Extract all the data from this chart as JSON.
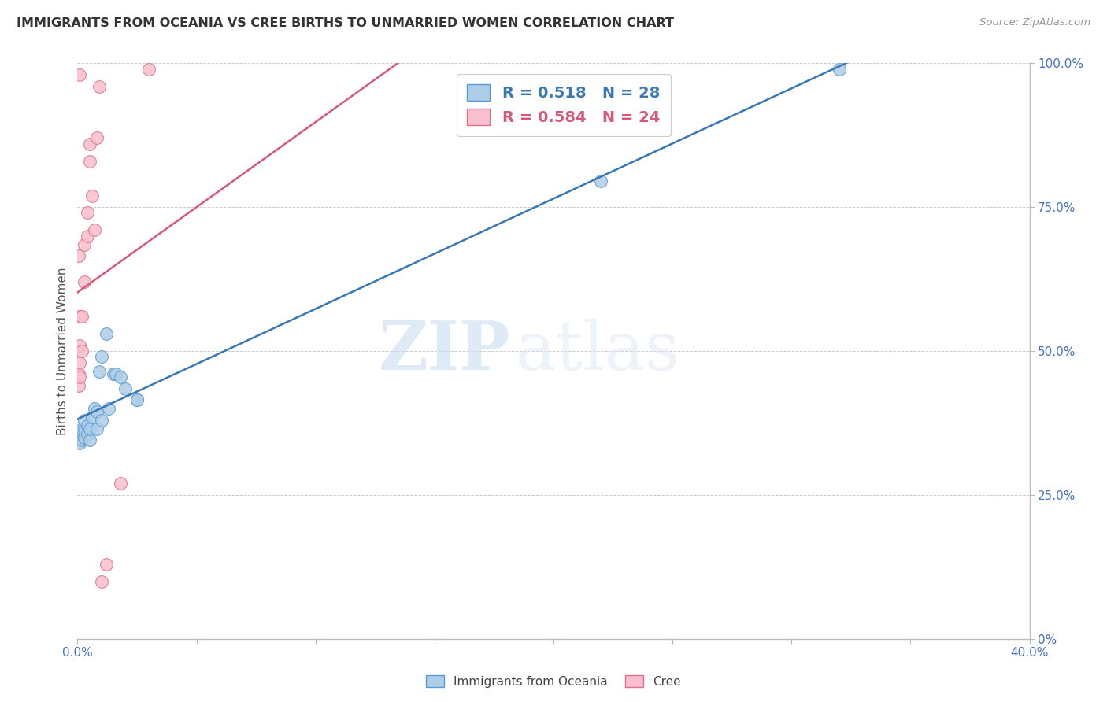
{
  "title": "IMMIGRANTS FROM OCEANIA VS CREE BIRTHS TO UNMARRIED WOMEN CORRELATION CHART",
  "source": "Source: ZipAtlas.com",
  "ylabel": "Births to Unmarried Women",
  "xlim": [
    0.0,
    0.4
  ],
  "ylim": [
    0.0,
    1.0
  ],
  "xticks": [
    0.0,
    0.05,
    0.1,
    0.15,
    0.2,
    0.25,
    0.3,
    0.35,
    0.4
  ],
  "xtick_labels": [
    "0.0%",
    "",
    "",
    "",
    "",
    "",
    "",
    "",
    "40.0%"
  ],
  "yticks_right": [
    0.0,
    0.25,
    0.5,
    0.75,
    1.0
  ],
  "ytick_labels_right": [
    "0%",
    "25.0%",
    "50.0%",
    "75.0%",
    "100.0%"
  ],
  "blue_fill_color": "#aecde8",
  "pink_fill_color": "#f9bfcc",
  "blue_edge_color": "#5b9bd5",
  "pink_edge_color": "#e07090",
  "blue_line_color": "#3a78b5",
  "pink_line_color": "#d45a7a",
  "R_blue": 0.518,
  "N_blue": 28,
  "R_pink": 0.584,
  "N_pink": 24,
  "legend_label_blue": "Immigrants from Oceania",
  "legend_label_pink": "Cree",
  "watermark_zip": "ZIP",
  "watermark_atlas": "atlas",
  "blue_scatter_x": [
    0.001,
    0.001,
    0.002,
    0.002,
    0.003,
    0.003,
    0.003,
    0.004,
    0.004,
    0.005,
    0.005,
    0.006,
    0.007,
    0.008,
    0.008,
    0.009,
    0.01,
    0.01,
    0.012,
    0.013,
    0.015,
    0.016,
    0.018,
    0.02,
    0.025,
    0.025,
    0.22,
    0.32
  ],
  "blue_scatter_y": [
    0.34,
    0.355,
    0.345,
    0.365,
    0.35,
    0.365,
    0.38,
    0.355,
    0.37,
    0.345,
    0.365,
    0.385,
    0.4,
    0.365,
    0.395,
    0.465,
    0.38,
    0.49,
    0.53,
    0.4,
    0.46,
    0.46,
    0.455,
    0.435,
    0.415,
    0.415,
    0.795,
    0.99
  ],
  "pink_scatter_x": [
    0.0005,
    0.0005,
    0.001,
    0.001,
    0.001,
    0.001,
    0.002,
    0.002,
    0.003,
    0.003,
    0.004,
    0.004,
    0.005,
    0.005,
    0.006,
    0.007,
    0.008,
    0.009,
    0.01,
    0.012,
    0.018,
    0.03,
    0.0005,
    0.001
  ],
  "pink_scatter_y": [
    0.44,
    0.46,
    0.455,
    0.48,
    0.51,
    0.56,
    0.5,
    0.56,
    0.62,
    0.685,
    0.7,
    0.74,
    0.83,
    0.86,
    0.77,
    0.71,
    0.87,
    0.96,
    0.1,
    0.13,
    0.27,
    0.99,
    0.665,
    0.98
  ],
  "background_color": "#ffffff",
  "grid_color": "#cccccc",
  "axis_color": "#bbbbbb",
  "tick_label_color": "#4472c4",
  "title_color": "#333333",
  "ylabel_color": "#555555",
  "source_color": "#999999"
}
